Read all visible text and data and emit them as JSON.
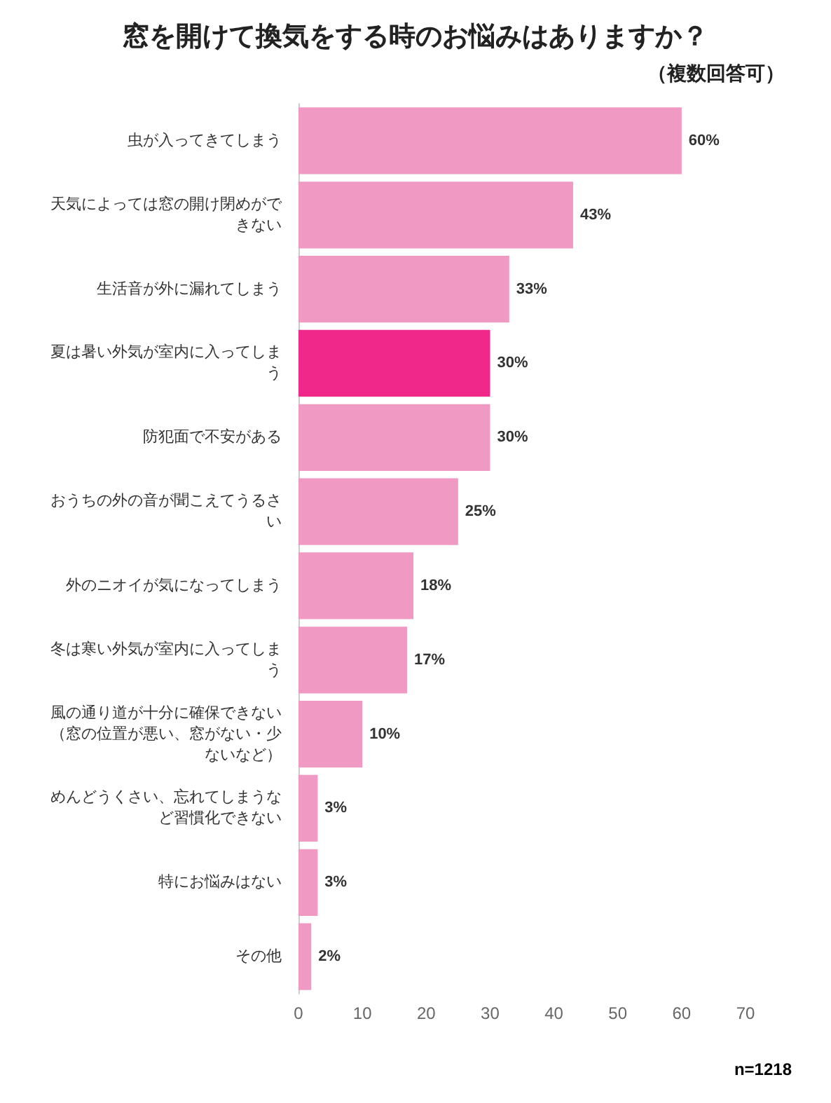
{
  "chart_data": {
    "type": "bar",
    "orientation": "horizontal",
    "title": "窓を開けて換気をする時のお悩みはありますか？",
    "subtitle": "（複数回答可）",
    "categories": [
      "虫が入ってきてしまう",
      "天気によっては窓の開け閉めができない",
      "生活音が外に漏れてしまう",
      "夏は暑い外気が室内に入ってしまう",
      "防犯面で不安がある",
      "おうちの外の音が聞こえてうるさい",
      "外のニオイが気になってしまう",
      "冬は寒い外気が室内に入ってしまう",
      "風の通り道が十分に確保できない（窓の位置が悪い、窓がない・少ないなど）",
      "めんどうくさい、忘れてしまうなど習慣化できない",
      "特にお悩みはない",
      "その他"
    ],
    "values": [
      60,
      43,
      33,
      30,
      30,
      25,
      18,
      17,
      10,
      3,
      3,
      2
    ],
    "value_labels": [
      "60%",
      "43%",
      "33%",
      "30%",
      "30%",
      "25%",
      "18%",
      "17%",
      "10%",
      "3%",
      "3%",
      "2%"
    ],
    "colors": [
      "#f09ac3",
      "#f09ac3",
      "#f09ac3",
      "#f0288a",
      "#f09ac3",
      "#f09ac3",
      "#f09ac3",
      "#f09ac3",
      "#f09ac3",
      "#f09ac3",
      "#f09ac3",
      "#f09ac3"
    ],
    "xlim": [
      0,
      70
    ],
    "xticks": [
      0,
      10,
      20,
      30,
      40,
      50,
      60,
      70
    ],
    "grid": false,
    "annotations": [
      "n=1218"
    ]
  }
}
